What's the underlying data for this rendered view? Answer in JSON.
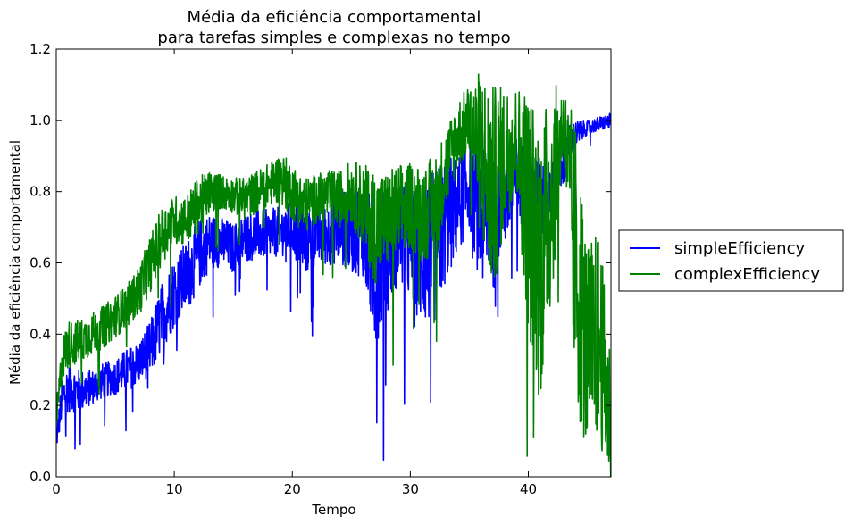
{
  "chart_data": {
    "type": "line",
    "title_line1": "Média da eficiência comportamental",
    "title_line2": "para tarefas simples e complexas no tempo",
    "xlabel": "Tempo",
    "ylabel": "Média da eficiência comportamental",
    "xlim": [
      0,
      47
    ],
    "ylim": [
      0,
      1.2
    ],
    "x_ticks": [
      0,
      10,
      20,
      30,
      40
    ],
    "x_tick_labels": [
      "0",
      "10",
      "20",
      "30",
      "40"
    ],
    "y_ticks": [
      0.0,
      0.2,
      0.4,
      0.6,
      0.8,
      1.0,
      1.2
    ],
    "y_tick_labels": [
      "0.0",
      "0.2",
      "0.4",
      "0.6",
      "0.8",
      "1.0",
      "1.2"
    ],
    "grid": false,
    "legend_position": "right-outside",
    "series": [
      {
        "name": "simpleEfficiency",
        "color": "#0000ff",
        "x": [
          0,
          0.5,
          1,
          2,
          3,
          4,
          5,
          6,
          7,
          8,
          9,
          10,
          11,
          12,
          13,
          14,
          15,
          16,
          17,
          18,
          19,
          20,
          21,
          22,
          23,
          24,
          25,
          26,
          27,
          28,
          29,
          30,
          31,
          32,
          33,
          34,
          35,
          36,
          37,
          38,
          39,
          40,
          41,
          42,
          43,
          44,
          45,
          46,
          47
        ],
        "values": [
          0.1,
          0.22,
          0.25,
          0.24,
          0.25,
          0.27,
          0.28,
          0.3,
          0.32,
          0.36,
          0.45,
          0.52,
          0.56,
          0.62,
          0.66,
          0.66,
          0.64,
          0.67,
          0.68,
          0.68,
          0.69,
          0.7,
          0.66,
          0.68,
          0.68,
          0.7,
          0.69,
          0.7,
          0.56,
          0.64,
          0.68,
          0.65,
          0.62,
          0.64,
          0.72,
          0.76,
          0.82,
          0.72,
          0.74,
          0.78,
          0.84,
          0.8,
          0.78,
          0.82,
          0.9,
          0.96,
          0.98,
          0.99,
          1.0
        ],
        "spread": [
          0.03,
          0.06,
          0.07,
          0.06,
          0.05,
          0.05,
          0.05,
          0.06,
          0.06,
          0.08,
          0.1,
          0.1,
          0.1,
          0.1,
          0.08,
          0.07,
          0.07,
          0.07,
          0.07,
          0.07,
          0.07,
          0.08,
          0.1,
          0.09,
          0.09,
          0.1,
          0.12,
          0.14,
          0.2,
          0.18,
          0.14,
          0.16,
          0.2,
          0.22,
          0.18,
          0.14,
          0.12,
          0.2,
          0.16,
          0.14,
          0.12,
          0.12,
          0.12,
          0.1,
          0.08,
          0.04,
          0.02,
          0.02,
          0.02
        ]
      },
      {
        "name": "complexEfficiency",
        "color": "#008000",
        "x": [
          0,
          0.5,
          1,
          2,
          3,
          4,
          5,
          6,
          7,
          8,
          9,
          10,
          11,
          12,
          13,
          14,
          15,
          16,
          17,
          18,
          19,
          20,
          21,
          22,
          23,
          24,
          25,
          26,
          27,
          28,
          29,
          30,
          31,
          32,
          33,
          34,
          35,
          36,
          37,
          38,
          39,
          40,
          41,
          42,
          43,
          44,
          45,
          46,
          47
        ],
        "values": [
          0.15,
          0.33,
          0.37,
          0.38,
          0.4,
          0.42,
          0.45,
          0.48,
          0.52,
          0.6,
          0.68,
          0.72,
          0.72,
          0.76,
          0.8,
          0.8,
          0.79,
          0.78,
          0.8,
          0.82,
          0.84,
          0.8,
          0.76,
          0.78,
          0.79,
          0.78,
          0.8,
          0.76,
          0.7,
          0.72,
          0.74,
          0.76,
          0.74,
          0.76,
          0.86,
          0.96,
          1.0,
          0.9,
          0.8,
          0.9,
          0.95,
          0.75,
          0.6,
          0.8,
          1.0,
          0.6,
          0.35,
          0.4,
          0.15
        ],
        "spread": [
          0.05,
          0.06,
          0.07,
          0.06,
          0.06,
          0.06,
          0.06,
          0.06,
          0.07,
          0.08,
          0.08,
          0.07,
          0.07,
          0.08,
          0.06,
          0.05,
          0.05,
          0.06,
          0.06,
          0.06,
          0.07,
          0.08,
          0.08,
          0.07,
          0.07,
          0.08,
          0.09,
          0.12,
          0.16,
          0.14,
          0.14,
          0.12,
          0.14,
          0.14,
          0.12,
          0.1,
          0.1,
          0.25,
          0.3,
          0.2,
          0.15,
          0.35,
          0.4,
          0.3,
          0.1,
          0.4,
          0.3,
          0.3,
          0.2
        ]
      }
    ]
  }
}
